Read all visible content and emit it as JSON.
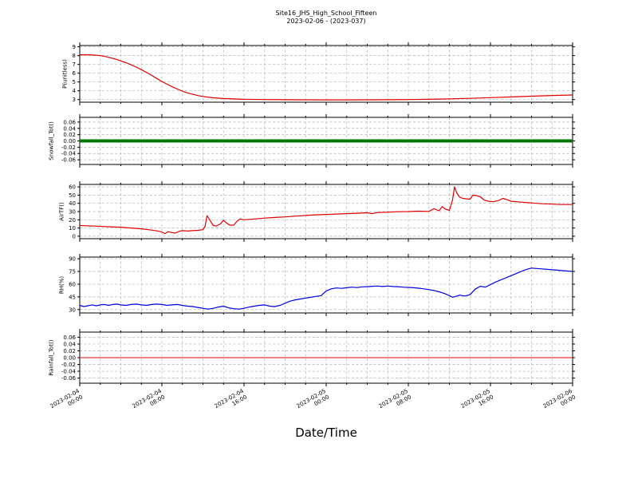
{
  "chart_data": {
    "type": "line",
    "title": "Site16_JHS_High_School_Fifteen",
    "subtitle": "2023-02-06 - (2023-037)",
    "xlabel": "Date/Time",
    "grid": true,
    "legend": "none",
    "x_axis": {
      "min": 0,
      "max": 48,
      "unit": "hours since 2023-02-04 00:00",
      "major_ticks": [
        0,
        8,
        16,
        24,
        32,
        40,
        48
      ],
      "minor_step": 2,
      "tick_labels": [
        [
          "2023-02-04",
          "00:00"
        ],
        [
          "2023-02-04",
          "08:00"
        ],
        [
          "2023-02-04",
          "16:00"
        ],
        [
          "2023-02-05",
          "00:00"
        ],
        [
          "2023-02-05",
          "08:00"
        ],
        [
          "2023-02-05",
          "16:00"
        ],
        [
          "2023-02-06",
          "00:00"
        ]
      ]
    },
    "panels": [
      {
        "id": "p-unitless",
        "ylabel": "P(unitless)",
        "ylim": [
          2.7,
          9.15
        ],
        "yticks": [
          3,
          4,
          5,
          6,
          7,
          8,
          9
        ],
        "ytick_labels": [
          "3",
          "4",
          "5",
          "6",
          "7",
          "8",
          "9"
        ],
        "color": "#dd0000",
        "linewidth": 1.2,
        "points": [
          [
            0,
            8.1
          ],
          [
            0.5,
            8.1
          ],
          [
            1,
            8.1
          ],
          [
            1.5,
            8.05
          ],
          [
            2,
            8.0
          ],
          [
            2.5,
            7.9
          ],
          [
            3,
            7.75
          ],
          [
            3.5,
            7.6
          ],
          [
            4,
            7.4
          ],
          [
            4.5,
            7.2
          ],
          [
            5,
            6.95
          ],
          [
            5.5,
            6.7
          ],
          [
            6,
            6.4
          ],
          [
            6.5,
            6.1
          ],
          [
            7,
            5.75
          ],
          [
            7.5,
            5.4
          ],
          [
            8,
            5.05
          ],
          [
            8.5,
            4.75
          ],
          [
            9,
            4.45
          ],
          [
            9.5,
            4.2
          ],
          [
            10,
            3.95
          ],
          [
            10.5,
            3.75
          ],
          [
            11,
            3.6
          ],
          [
            11.5,
            3.45
          ],
          [
            12,
            3.35
          ],
          [
            13,
            3.2
          ],
          [
            14,
            3.12
          ],
          [
            15,
            3.07
          ],
          [
            16,
            3.03
          ],
          [
            18,
            3.0
          ],
          [
            20,
            2.98
          ],
          [
            22,
            2.97
          ],
          [
            24,
            2.96
          ],
          [
            26,
            2.96
          ],
          [
            28,
            2.97
          ],
          [
            30,
            2.98
          ],
          [
            32,
            3.0
          ],
          [
            34,
            3.03
          ],
          [
            36,
            3.08
          ],
          [
            38,
            3.14
          ],
          [
            40,
            3.22
          ],
          [
            42,
            3.3
          ],
          [
            44,
            3.38
          ],
          [
            46,
            3.46
          ],
          [
            48,
            3.52
          ]
        ]
      },
      {
        "id": "snowfall-tot",
        "ylabel": "Snowfall_Tot()",
        "ylim": [
          -0.075,
          0.075
        ],
        "yticks": [
          -0.06,
          -0.04,
          -0.02,
          0.0,
          0.02,
          0.04,
          0.06
        ],
        "ytick_labels": [
          "-0.06",
          "-0.04",
          "-0.02",
          "0.00",
          "0.02",
          "0.04",
          "0.06"
        ],
        "color": "#007700",
        "linewidth": 4,
        "points": [
          [
            0,
            0
          ],
          [
            48,
            0
          ]
        ]
      },
      {
        "id": "airtf",
        "ylabel": "AirTF()",
        "ylim": [
          -3,
          63
        ],
        "yticks": [
          0,
          10,
          20,
          30,
          40,
          50,
          60
        ],
        "ytick_labels": [
          "0",
          "10",
          "20",
          "30",
          "40",
          "50",
          "60"
        ],
        "color": "#dd0000",
        "linewidth": 1.2,
        "points": [
          [
            0,
            13
          ],
          [
            0.5,
            12.8
          ],
          [
            1,
            12.5
          ],
          [
            1.5,
            12.3
          ],
          [
            2,
            12
          ],
          [
            2.5,
            11.8
          ],
          [
            3,
            11.5
          ],
          [
            3.5,
            11.2
          ],
          [
            4,
            11
          ],
          [
            4.5,
            10.5
          ],
          [
            5,
            10
          ],
          [
            5.5,
            9.5
          ],
          [
            6,
            9
          ],
          [
            6.5,
            8.3
          ],
          [
            7,
            7.5
          ],
          [
            7.5,
            6.5
          ],
          [
            8,
            5.2
          ],
          [
            8.3,
            3.2
          ],
          [
            8.6,
            5.5
          ],
          [
            9,
            4.5
          ],
          [
            9.3,
            3.8
          ],
          [
            9.7,
            6
          ],
          [
            10,
            6.8
          ],
          [
            10.5,
            6.3
          ],
          [
            11,
            6.8
          ],
          [
            11.5,
            7.2
          ],
          [
            12,
            8
          ],
          [
            12.2,
            12
          ],
          [
            12.4,
            25
          ],
          [
            12.7,
            19
          ],
          [
            13,
            13
          ],
          [
            13.3,
            12.5
          ],
          [
            13.7,
            15
          ],
          [
            14,
            19.5
          ],
          [
            14.3,
            16
          ],
          [
            14.6,
            13.5
          ],
          [
            15,
            13.5
          ],
          [
            15.3,
            18
          ],
          [
            15.6,
            21
          ],
          [
            16,
            20
          ],
          [
            16.5,
            20.5
          ],
          [
            17,
            21
          ],
          [
            18,
            22
          ],
          [
            19,
            22.8
          ],
          [
            20,
            23.5
          ],
          [
            21,
            24.5
          ],
          [
            22,
            25.2
          ],
          [
            23,
            26
          ],
          [
            24,
            26.5
          ],
          [
            25,
            27
          ],
          [
            26,
            27.5
          ],
          [
            27,
            28
          ],
          [
            28,
            28.5
          ],
          [
            28.5,
            27.5
          ],
          [
            29,
            28.8
          ],
          [
            30,
            29.2
          ],
          [
            31,
            29.8
          ],
          [
            32,
            30
          ],
          [
            33,
            30.5
          ],
          [
            34,
            30.2
          ],
          [
            34.5,
            33.5
          ],
          [
            35,
            31
          ],
          [
            35.3,
            36
          ],
          [
            35.6,
            33
          ],
          [
            36,
            31.5
          ],
          [
            36.3,
            44
          ],
          [
            36.5,
            60
          ],
          [
            36.7,
            53
          ],
          [
            37,
            47.5
          ],
          [
            37.3,
            46
          ],
          [
            37.6,
            45.5
          ],
          [
            38,
            45
          ],
          [
            38.3,
            50
          ],
          [
            38.6,
            49.5
          ],
          [
            39,
            48
          ],
          [
            39.4,
            44
          ],
          [
            39.8,
            42.5
          ],
          [
            40.3,
            42
          ],
          [
            40.8,
            43.5
          ],
          [
            41.2,
            46
          ],
          [
            41.6,
            44.5
          ],
          [
            42,
            42.5
          ],
          [
            42.5,
            42
          ],
          [
            43,
            41.5
          ],
          [
            44,
            40.5
          ],
          [
            45,
            39.5
          ],
          [
            46,
            39
          ],
          [
            47,
            38.5
          ],
          [
            48,
            38.5
          ]
        ]
      },
      {
        "id": "rh",
        "ylabel": "RH(%)",
        "ylim": [
          26,
          92
        ],
        "yticks": [
          30,
          45,
          60,
          75,
          90
        ],
        "ytick_labels": [
          "30",
          "45",
          "60",
          "75",
          "90"
        ],
        "color": "#0000dd",
        "linewidth": 1.2,
        "points": [
          [
            0,
            35
          ],
          [
            0.4,
            33.5
          ],
          [
            0.8,
            34.5
          ],
          [
            1.2,
            35.5
          ],
          [
            1.6,
            34.5
          ],
          [
            2,
            35.5
          ],
          [
            2.4,
            36
          ],
          [
            2.8,
            35
          ],
          [
            3.2,
            36
          ],
          [
            3.6,
            36.5
          ],
          [
            4,
            35.5
          ],
          [
            4.5,
            35
          ],
          [
            5,
            36
          ],
          [
            5.5,
            36.5
          ],
          [
            6,
            35.5
          ],
          [
            6.5,
            35
          ],
          [
            7,
            36
          ],
          [
            7.5,
            36.5
          ],
          [
            8,
            36
          ],
          [
            8.5,
            35
          ],
          [
            9,
            35.5
          ],
          [
            9.5,
            36
          ],
          [
            10,
            35
          ],
          [
            10.5,
            34
          ],
          [
            11,
            33.5
          ],
          [
            11.5,
            32.5
          ],
          [
            12,
            31.5
          ],
          [
            12.5,
            30.5
          ],
          [
            13,
            31.5
          ],
          [
            13.5,
            33
          ],
          [
            14,
            34
          ],
          [
            14.5,
            32
          ],
          [
            15,
            31
          ],
          [
            15.5,
            30.5
          ],
          [
            16,
            31.5
          ],
          [
            16.5,
            33
          ],
          [
            17,
            34
          ],
          [
            17.5,
            35
          ],
          [
            18,
            35.5
          ],
          [
            18.5,
            34
          ],
          [
            19,
            33.5
          ],
          [
            19.5,
            35
          ],
          [
            20,
            37.5
          ],
          [
            20.5,
            40
          ],
          [
            21,
            41.5
          ],
          [
            21.5,
            42.5
          ],
          [
            22,
            43.5
          ],
          [
            22.5,
            44.5
          ],
          [
            23,
            45.5
          ],
          [
            23.5,
            46.5
          ],
          [
            24,
            52
          ],
          [
            24.5,
            54.5
          ],
          [
            25,
            55.5
          ],
          [
            25.5,
            55
          ],
          [
            26,
            55.8
          ],
          [
            26.5,
            56.5
          ],
          [
            27,
            56
          ],
          [
            27.5,
            56.8
          ],
          [
            28,
            57
          ],
          [
            28.5,
            57.5
          ],
          [
            29,
            57.8
          ],
          [
            29.5,
            57.2
          ],
          [
            30,
            57.8
          ],
          [
            30.5,
            57.2
          ],
          [
            31,
            57
          ],
          [
            31.5,
            56.5
          ],
          [
            32,
            56.2
          ],
          [
            32.5,
            55.8
          ],
          [
            33,
            55.2
          ],
          [
            33.5,
            54.5
          ],
          [
            34,
            53.5
          ],
          [
            34.5,
            52.5
          ],
          [
            35,
            51
          ],
          [
            35.5,
            49
          ],
          [
            36,
            46.5
          ],
          [
            36.3,
            44.5
          ],
          [
            36.6,
            45.5
          ],
          [
            37,
            47
          ],
          [
            37.5,
            46
          ],
          [
            38,
            47.5
          ],
          [
            38.5,
            54
          ],
          [
            39,
            57.5
          ],
          [
            39.5,
            56.5
          ],
          [
            40,
            59.5
          ],
          [
            40.5,
            62.5
          ],
          [
            41,
            65
          ],
          [
            41.5,
            67.5
          ],
          [
            42,
            70
          ],
          [
            42.5,
            72.5
          ],
          [
            43,
            75
          ],
          [
            43.5,
            77.5
          ],
          [
            44,
            79
          ],
          [
            44.5,
            78.5
          ],
          [
            45,
            78
          ],
          [
            45.5,
            77.5
          ],
          [
            46,
            77
          ],
          [
            46.5,
            76.5
          ],
          [
            47,
            76
          ],
          [
            47.5,
            75.5
          ],
          [
            48,
            75
          ]
        ]
      },
      {
        "id": "rainfall-tot",
        "ylabel": "Rainfall_Tot()",
        "ylim": [
          -0.075,
          0.075
        ],
        "yticks": [
          -0.06,
          -0.04,
          -0.02,
          0.0,
          0.02,
          0.04,
          0.06
        ],
        "ytick_labels": [
          "-0.06",
          "-0.04",
          "-0.02",
          "0.00",
          "0.02",
          "0.04",
          "0.06"
        ],
        "color": "#dd0000",
        "linewidth": 1,
        "points": [
          [
            0,
            0
          ],
          [
            48,
            0
          ]
        ]
      }
    ]
  }
}
